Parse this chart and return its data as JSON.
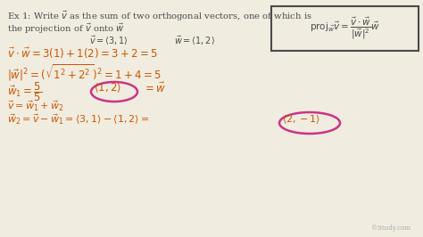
{
  "bg_color": "#f0ece0",
  "color_main": "#4a4a4a",
  "color_orange": "#cc5500",
  "color_pink": "#cc3388",
  "watermark": "©Study.com",
  "title_line1": "Ex 1: Write $\\vec{v}$ as the sum of two orthogonal vectors, one of which is",
  "title_line2": "the projection of $\\vec{v}$ onto $\\vec{w}$",
  "vec_line": "$\\vec{v}=\\langle 3,1\\rangle$                    $\\vec{w}=\\langle 1,2\\rangle$",
  "math_line2": "$\\vec{v}\\cdot\\vec{w} = 3(1)+1(2) = 3+2 = 5$",
  "math_line3": "$|\\vec{w}|^2=(\\sqrt{1^2+2^2})^2 = 1+4 = 5$",
  "math_w1a": "$\\vec{w}_1 = \\dfrac{5}{5}$",
  "math_w1b": "$\\langle 1,2\\rangle$",
  "math_w1c": "$= \\vec{w}$",
  "math_line5": "$\\vec{v} = \\vec{w}_1 + \\vec{w}_2$",
  "math_line6a": "$\\vec{w}_2 = \\vec{v}-\\vec{w}_1 = \\langle 3,1\\rangle-\\langle 1,2\\rangle=$",
  "math_line6b": "$\\langle 2,-1\\rangle$",
  "box_formula": "$\\mathrm{proj}_{\\vec{w}}\\vec{v}=\\dfrac{\\vec{v}\\cdot\\vec{w}}{|\\vec{w}|^2}\\vec{w}$"
}
